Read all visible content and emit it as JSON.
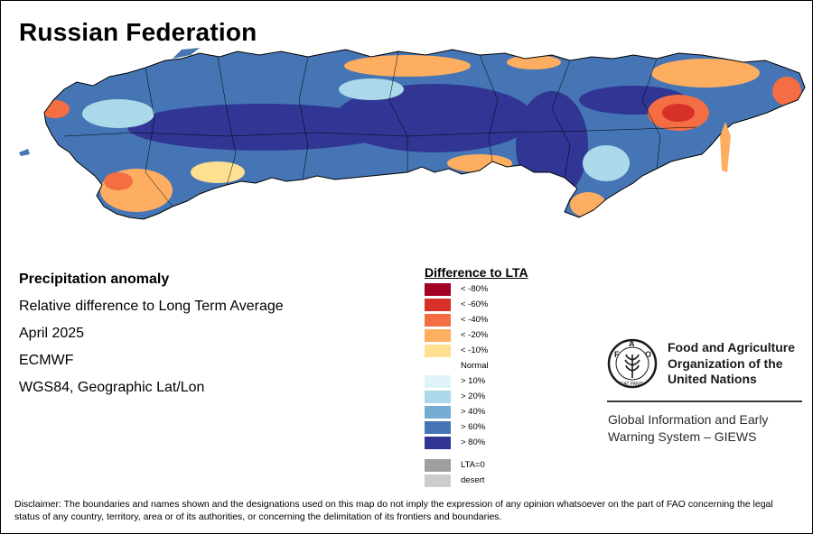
{
  "title": "Russian Federation",
  "info": {
    "heading": "Precipitation anomaly",
    "subtitle": "Relative difference to Long Term Average",
    "period": "April 2025",
    "source": "ECMWF",
    "projection": "WGS84, Geographic Lat/Lon"
  },
  "legend": {
    "title": "Difference to LTA",
    "classes": [
      {
        "label": "< -80%",
        "color": "#a50026"
      },
      {
        "label": "< -60%",
        "color": "#d73027"
      },
      {
        "label": "< -40%",
        "color": "#f46d43"
      },
      {
        "label": "< -20%",
        "color": "#fdae61"
      },
      {
        "label": "< -10%",
        "color": "#fee090"
      }
    ],
    "normal_label": "Normal",
    "wet_classes": [
      {
        "label": "> 10%",
        "color": "#e0f3f8"
      },
      {
        "label": "> 20%",
        "color": "#abd9e9"
      },
      {
        "label": "> 40%",
        "color": "#74add1"
      },
      {
        "label": "> 60%",
        "color": "#4575b4"
      },
      {
        "label": "> 80%",
        "color": "#313695"
      }
    ],
    "other_classes": [
      {
        "label": "LTA=0",
        "color": "#9e9e9e"
      },
      {
        "label": "desert",
        "color": "#cccccc"
      }
    ]
  },
  "fao": {
    "logo_text": "FAO",
    "logo_motto": "FIAT PANIS",
    "name_lines": [
      "Food and Agriculture",
      "Organization of the",
      "United Nations"
    ],
    "system_lines": [
      "Global Information and Early",
      "Warning System – GIEWS"
    ]
  },
  "disclaimer": "Disclaimer: The boundaries and names shown and the designations used on this map do not imply the expression of any opinion whatsoever on the part of FAO concerning the legal status of any country, territory, area or of its authorities, or concerning the delimitation of its frontiers and boundaries.",
  "map_colors": {
    "dry_strong": "#d73027",
    "dry": "#f46d43",
    "dry_light": "#fdae61",
    "normal_dry": "#fee090",
    "wet_light": "#abd9e9",
    "wet": "#4575b4",
    "wet_strong": "#313695",
    "border": "#000000"
  }
}
